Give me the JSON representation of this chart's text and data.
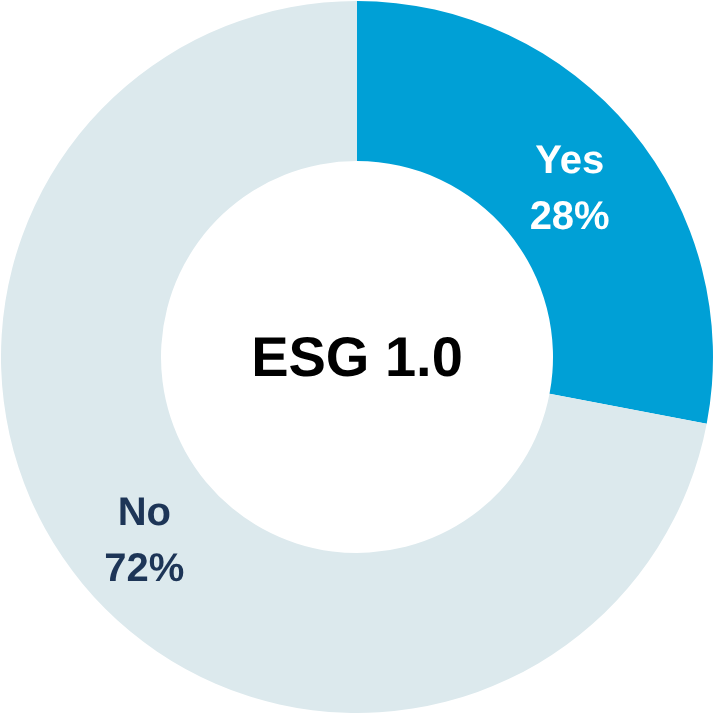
{
  "chart_data": {
    "type": "donut",
    "title": "ESG 1.0",
    "categories": [
      "Yes",
      "No"
    ],
    "values": [
      28,
      72
    ],
    "value_labels": [
      "28%",
      "72%"
    ],
    "colors": [
      "#00a0d6",
      "#dce9ed"
    ]
  }
}
